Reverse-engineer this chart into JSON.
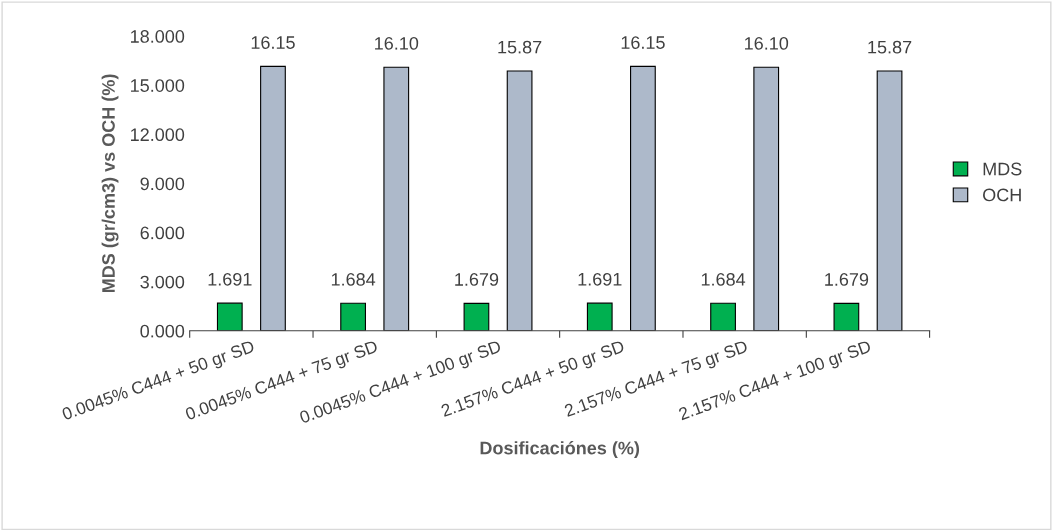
{
  "chart_data": {
    "type": "bar",
    "xlabel": "Dosificaciónes (%)",
    "ylabel": "MDS (gr/cm3) vs OCH (%)",
    "categories": [
      "0.0045% C444 + 50 gr SD",
      "0.0045% C444 + 75 gr SD",
      "0.0045% C444 + 100 gr SD",
      "2.157% C444 + 50 gr SD",
      "2.157% C444 + 75 gr SD",
      "2.157% C444 + 100 gr SD"
    ],
    "series": [
      {
        "name": "MDS",
        "color": "#00b050",
        "values": [
          1.691,
          1.684,
          1.679,
          1.691,
          1.684,
          1.679
        ],
        "value_labels": [
          "1.691",
          "1.684",
          "1.679",
          "1.691",
          "1.684",
          "1.679"
        ]
      },
      {
        "name": "OCH",
        "color": "#adb9ca",
        "values": [
          16.15,
          16.1,
          15.87,
          16.15,
          16.1,
          15.87
        ],
        "value_labels": [
          "16.15",
          "16.10",
          "15.87",
          "16.15",
          "16.10",
          "15.87"
        ]
      }
    ],
    "ylim": [
      0,
      18
    ],
    "yticks": [
      {
        "value": 0,
        "label": "0.000"
      },
      {
        "value": 3,
        "label": "3.000"
      },
      {
        "value": 6,
        "label": "6.000"
      },
      {
        "value": 9,
        "label": "9.000"
      },
      {
        "value": 12,
        "label": "12.000"
      },
      {
        "value": 15,
        "label": "15.000"
      },
      {
        "value": 18,
        "label": "18.000"
      }
    ],
    "grid": false,
    "legend": "right"
  }
}
